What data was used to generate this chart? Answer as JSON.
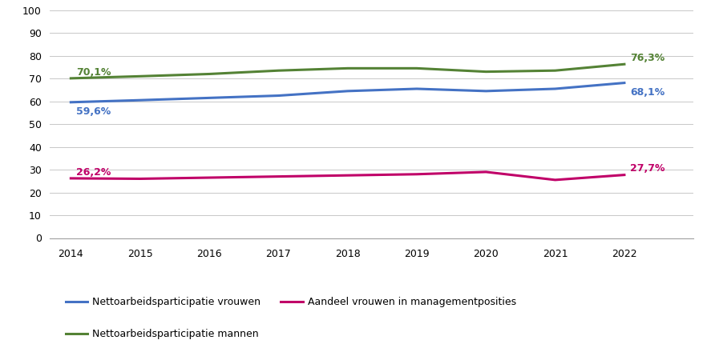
{
  "years": [
    2014,
    2015,
    2016,
    2017,
    2018,
    2019,
    2020,
    2021,
    2022
  ],
  "vrouwen": [
    59.6,
    60.5,
    61.5,
    62.5,
    64.5,
    65.5,
    64.5,
    65.5,
    68.1
  ],
  "mannen": [
    70.1,
    71.0,
    72.0,
    73.5,
    74.5,
    74.5,
    73.0,
    73.5,
    76.3
  ],
  "management": [
    26.2,
    26.0,
    26.5,
    27.0,
    27.5,
    28.0,
    29.0,
    25.5,
    27.7
  ],
  "vrouwen_color": "#4472C4",
  "mannen_color": "#548235",
  "management_color": "#C00068",
  "label_vrouwen": "Nettoarbeidsparticipatie vrouwen",
  "label_mannen": "Nettoarbeidsparticipatie mannen",
  "label_management": "Aandeel vrouwen in managementposities",
  "ylim": [
    0,
    100
  ],
  "yticks": [
    0,
    10,
    20,
    30,
    40,
    50,
    60,
    70,
    80,
    90,
    100
  ],
  "ann_vrouwen_start": "59,6%",
  "ann_vrouwen_end": "68,1%",
  "ann_mannen_start": "70,1%",
  "ann_mannen_end": "76,3%",
  "ann_mgmt_start": "26,2%",
  "ann_mgmt_end": "27,7%",
  "line_width": 2.2,
  "grid_color": "#C8C8C8",
  "background_color": "#FFFFFF",
  "fontsize_annot": 9,
  "fontsize_tick": 9,
  "fontsize_legend": 9
}
